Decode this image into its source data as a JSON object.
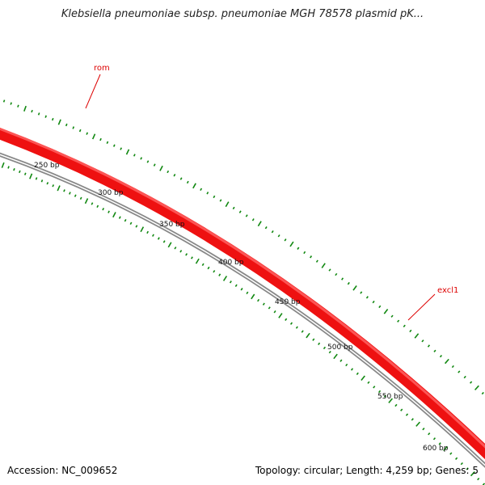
{
  "title": "Klebsiella pneumoniae subsp. pneumoniae MGH 78578 plasmid pK...",
  "accession_text": "Accession: NC_009652",
  "summary_text": "Topology: circular; Length: 4,259 bp; Genes: 5",
  "colors": {
    "gene": "#ee1111",
    "gene_highlight": "#ff6666",
    "backbone": "#888888",
    "tick": "#118811",
    "gene_label": "#dd0000"
  },
  "genes": [
    {
      "name": "rom"
    },
    {
      "name": "excl1"
    }
  ],
  "position_labels": [
    "250 bp",
    "300 bp",
    "350 bp",
    "400 bp",
    "450 bp",
    "500 bp",
    "550 bp",
    "600 bp"
  ]
}
